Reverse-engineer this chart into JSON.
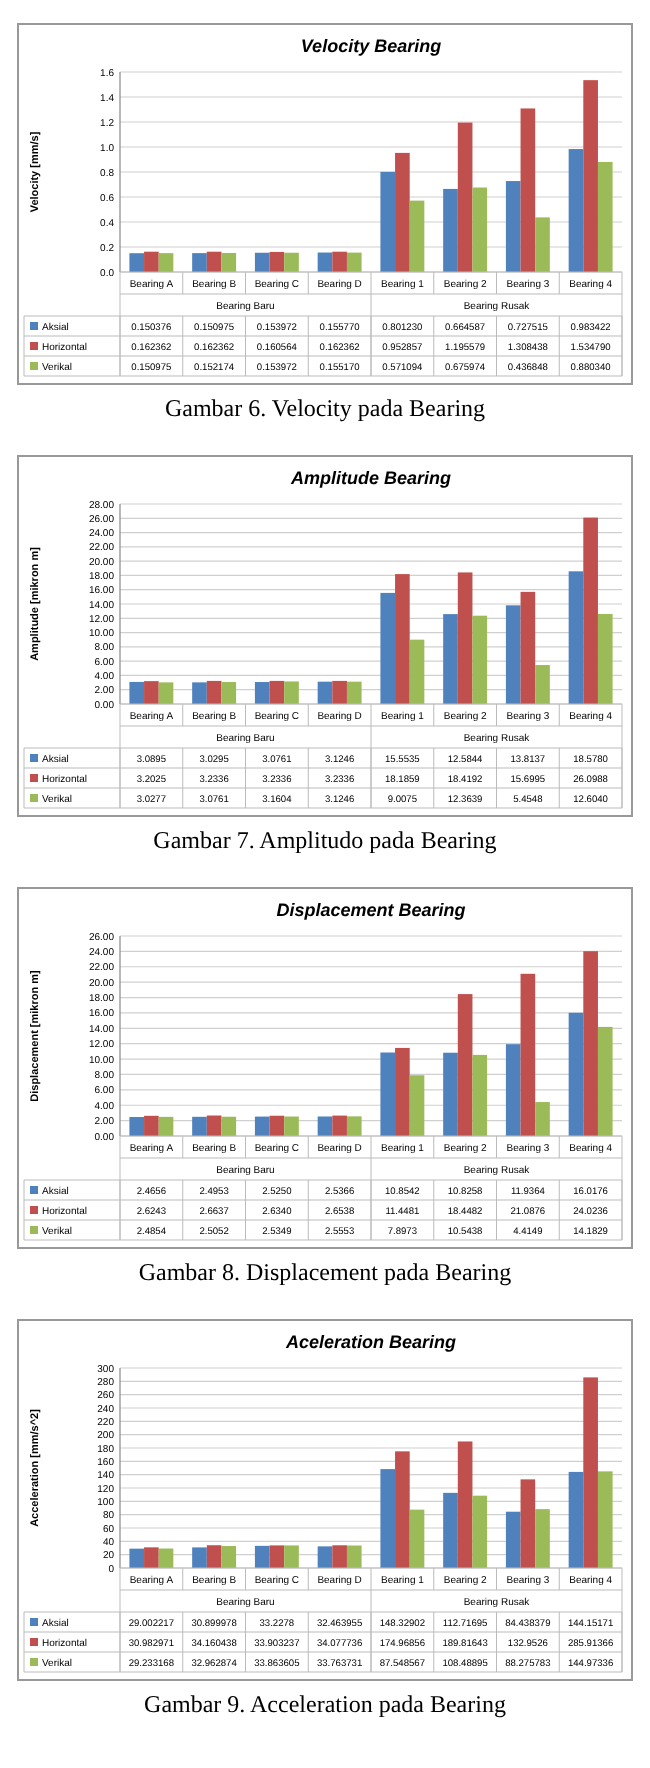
{
  "chart_data": [
    {
      "type": "bar",
      "title": "Velocity Bearing",
      "ylabel": "Velocity [mm/s]",
      "categories": [
        "Bearing A",
        "Bearing B",
        "Bearing C",
        "Bearing D",
        "Bearing 1",
        "Bearing 2",
        "Bearing 3",
        "Bearing 4"
      ],
      "series": [
        {
          "name": "Aksial",
          "color": "#4f81bd",
          "values": [
            0.150376,
            0.150975,
            0.153972,
            0.15577,
            0.80123,
            0.664587,
            0.727515,
            0.983422
          ],
          "value_labels": [
            "0.150376",
            "0.150975",
            "0.153972",
            "0.155770",
            "0.801230",
            "0.664587",
            "0.727515",
            "0.983422"
          ]
        },
        {
          "name": "Horizontal",
          "color": "#c0504d",
          "values": [
            0.162362,
            0.162362,
            0.160564,
            0.162362,
            0.952857,
            1.195579,
            1.308438,
            1.53479
          ],
          "value_labels": [
            "0.162362",
            "0.162362",
            "0.160564",
            "0.162362",
            "0.952857",
            "1.195579",
            "1.308438",
            "1.534790"
          ]
        },
        {
          "name": "Verikal",
          "color": "#9bbb59",
          "values": [
            0.150975,
            0.152174,
            0.153972,
            0.15517,
            0.571094,
            0.675974,
            0.436848,
            0.88034
          ],
          "value_labels": [
            "0.150975",
            "0.152174",
            "0.153972",
            "0.155170",
            "0.571094",
            "0.675974",
            "0.436848",
            "0.880340"
          ]
        }
      ],
      "ylim": [
        0,
        1.6
      ],
      "yticks": [
        {
          "value": 0,
          "label": "0.0"
        },
        {
          "value": 0.2,
          "label": "0.2"
        },
        {
          "value": 0.4,
          "label": "0.4"
        },
        {
          "value": 0.6,
          "label": "0.6"
        },
        {
          "value": 0.8,
          "label": "0.8"
        },
        {
          "value": 1,
          "label": "1.0"
        },
        {
          "value": 1.2,
          "label": "1.2"
        },
        {
          "value": 1.4,
          "label": "1.4"
        },
        {
          "value": 1.6,
          "label": "1.6"
        }
      ],
      "grid": "y",
      "legend": "bottom",
      "annotations": [
        "Bearing Baru",
        "Bearing Rusak",
        "Gambar 6.  Velocity pada Bearing"
      ]
    },
    {
      "type": "bar",
      "title": "Amplitude Bearing",
      "ylabel": "Amplitude [mikron m]",
      "categories": [
        "Bearing A",
        "Bearing B",
        "Bearing C",
        "Bearing D",
        "Bearing 1",
        "Bearing 2",
        "Bearing 3",
        "Bearing 4"
      ],
      "series": [
        {
          "name": "Aksial",
          "color": "#4f81bd",
          "values": [
            3.0895,
            3.0295,
            3.0761,
            3.1246,
            15.5535,
            12.5844,
            13.8137,
            18.578
          ],
          "value_labels": [
            "3.0895",
            "3.0295",
            "3.0761",
            "3.1246",
            "15.5535",
            "12.5844",
            "13.8137",
            "18.5780"
          ]
        },
        {
          "name": "Horizontal",
          "color": "#c0504d",
          "values": [
            3.2025,
            3.2336,
            3.2336,
            3.2336,
            18.1859,
            18.4192,
            15.6995,
            26.0988
          ],
          "value_labels": [
            "3.2025",
            "3.2336",
            "3.2336",
            "3.2336",
            "18.1859",
            "18.4192",
            "15.6995",
            "26.0988"
          ]
        },
        {
          "name": "Verikal",
          "color": "#9bbb59",
          "values": [
            3.0277,
            3.0761,
            3.1604,
            3.1246,
            9.0075,
            12.3639,
            5.4548,
            12.604
          ],
          "value_labels": [
            "3.0277",
            "3.0761",
            "3.1604",
            "3.1246",
            "9.0075",
            "12.3639",
            "5.4548",
            "12.6040"
          ]
        }
      ],
      "ylim": [
        0,
        28
      ],
      "yticks": [
        {
          "value": 0,
          "label": "0.00"
        },
        {
          "value": 2,
          "label": "2.00"
        },
        {
          "value": 4,
          "label": "4.00"
        },
        {
          "value": 6,
          "label": "6.00"
        },
        {
          "value": 8,
          "label": "8.00"
        },
        {
          "value": 10,
          "label": "10.00"
        },
        {
          "value": 12,
          "label": "12.00"
        },
        {
          "value": 14,
          "label": "14.00"
        },
        {
          "value": 16,
          "label": "16.00"
        },
        {
          "value": 18,
          "label": "18.00"
        },
        {
          "value": 20,
          "label": "20.00"
        },
        {
          "value": 22,
          "label": "22.00"
        },
        {
          "value": 24,
          "label": "24.00"
        },
        {
          "value": 26,
          "label": "26.00"
        },
        {
          "value": 28,
          "label": "28.00"
        }
      ],
      "grid": "y",
      "legend": "bottom",
      "annotations": [
        "Bearing Baru",
        "Bearing Rusak",
        "Gambar 7.  Amplitudo pada Bearing"
      ]
    },
    {
      "type": "bar",
      "title": "Displacement Bearing",
      "ylabel": "Displacement [mikron m]",
      "categories": [
        "Bearing A",
        "Bearing B",
        "Bearing C",
        "Bearing D",
        "Bearing 1",
        "Bearing 2",
        "Bearing 3",
        "Bearing 4"
      ],
      "series": [
        {
          "name": "Aksial",
          "color": "#4f81bd",
          "values": [
            2.4656,
            2.4953,
            2.525,
            2.5366,
            10.8542,
            10.8258,
            11.9364,
            16.0176
          ],
          "value_labels": [
            "2.4656",
            "2.4953",
            "2.5250",
            "2.5366",
            "10.8542",
            "10.8258",
            "11.9364",
            "16.0176"
          ]
        },
        {
          "name": "Horizontal",
          "color": "#c0504d",
          "values": [
            2.6243,
            2.6637,
            2.634,
            2.6538,
            11.4481,
            18.4482,
            21.0876,
            24.0236
          ],
          "value_labels": [
            "2.6243",
            "2.6637",
            "2.6340",
            "2.6538",
            "11.4481",
            "18.4482",
            "21.0876",
            "24.0236"
          ]
        },
        {
          "name": "Verikal",
          "color": "#9bbb59",
          "values": [
            2.4854,
            2.5052,
            2.5349,
            2.5553,
            7.8973,
            10.5438,
            4.4149,
            14.1829
          ],
          "value_labels": [
            "2.4854",
            "2.5052",
            "2.5349",
            "2.5553",
            "7.8973",
            "10.5438",
            "4.4149",
            "14.1829"
          ]
        }
      ],
      "ylim": [
        0,
        26
      ],
      "yticks": [
        {
          "value": 0,
          "label": "0.00"
        },
        {
          "value": 2,
          "label": "2.00"
        },
        {
          "value": 4,
          "label": "4.00"
        },
        {
          "value": 6,
          "label": "6.00"
        },
        {
          "value": 8,
          "label": "8.00"
        },
        {
          "value": 10,
          "label": "10.00"
        },
        {
          "value": 12,
          "label": "12.00"
        },
        {
          "value": 14,
          "label": "14.00"
        },
        {
          "value": 16,
          "label": "16.00"
        },
        {
          "value": 18,
          "label": "18.00"
        },
        {
          "value": 20,
          "label": "20.00"
        },
        {
          "value": 22,
          "label": "22.00"
        },
        {
          "value": 24,
          "label": "24.00"
        },
        {
          "value": 26,
          "label": "26.00"
        }
      ],
      "grid": "y",
      "legend": "bottom",
      "annotations": [
        "Bearing Baru",
        "Bearing Rusak",
        "Gambar 8. Displacement pada Bearing"
      ]
    },
    {
      "type": "bar",
      "title": "Aceleration Bearing",
      "ylabel": "Acceleration [mm/s^2]",
      "categories": [
        "Bearing A",
        "Bearing B",
        "Bearing C",
        "Bearing D",
        "Bearing 1",
        "Bearing 2",
        "Bearing 3",
        "Bearing 4"
      ],
      "series": [
        {
          "name": "Aksial",
          "color": "#4f81bd",
          "values": [
            29.002217,
            30.899978,
            33.2278,
            32.463955,
            148.32902,
            112.71695,
            84.438379,
            144.15171
          ],
          "value_labels": [
            "29.002217",
            "30.899978",
            "33.2278",
            "32.463955",
            "148.32902",
            "112.71695",
            "84.438379",
            "144.15171"
          ]
        },
        {
          "name": "Horizontal",
          "color": "#c0504d",
          "values": [
            30.982971,
            34.160438,
            33.903237,
            34.077736,
            174.96856,
            189.81643,
            132.9526,
            285.91366
          ],
          "value_labels": [
            "30.982971",
            "34.160438",
            "33.903237",
            "34.077736",
            "174.96856",
            "189.81643",
            "132.9526",
            "285.91366"
          ]
        },
        {
          "name": "Verikal",
          "color": "#9bbb59",
          "values": [
            29.233168,
            32.962874,
            33.863605,
            33.763731,
            87.548567,
            108.48895,
            88.275783,
            144.97336
          ],
          "value_labels": [
            "29.233168",
            "32.962874",
            "33.863605",
            "33.763731",
            "87.548567",
            "108.48895",
            "88.275783",
            "144.97336"
          ]
        }
      ],
      "ylim": [
        0,
        300
      ],
      "yticks": [
        0,
        20,
        40,
        60,
        80,
        100,
        120,
        140,
        160,
        180,
        200,
        220,
        240,
        260,
        280,
        300
      ],
      "grid": "y",
      "legend": "bottom",
      "annotations": [
        "Bearing Baru",
        "Bearing Rusak",
        "Gambar 9. Acceleration pada Bearing"
      ]
    }
  ]
}
